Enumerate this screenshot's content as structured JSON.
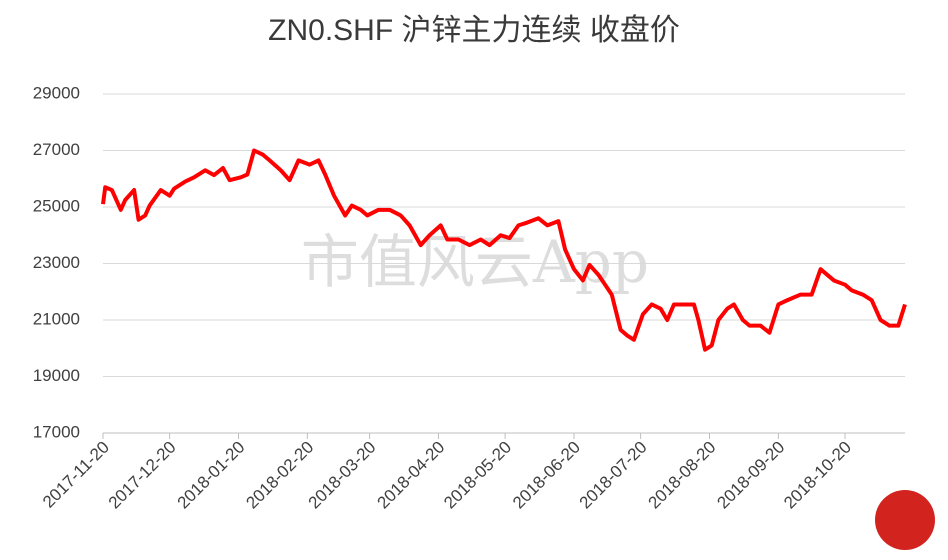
{
  "chart_data": {
    "type": "line",
    "title": "ZN0.SHF 沪锌主力连续 收盘价",
    "annotation": "市值风云App",
    "x": [
      "2017-11-20",
      "2017-11-21",
      "2017-11-24",
      "2017-11-28",
      "2017-11-30",
      "2017-12-04",
      "2017-12-06",
      "2017-12-09",
      "2017-12-11",
      "2017-12-16",
      "2017-12-20",
      "2017-12-22",
      "2017-12-27",
      "2017-12-31",
      "2018-01-05",
      "2018-01-09",
      "2018-01-13",
      "2018-01-16",
      "2018-01-21",
      "2018-01-24",
      "2018-01-27",
      "2018-01-31",
      "2018-02-03",
      "2018-02-08",
      "2018-02-12",
      "2018-02-16",
      "2018-02-21",
      "2018-02-25",
      "2018-02-28",
      "2018-03-04",
      "2018-03-09",
      "2018-03-12",
      "2018-03-16",
      "2018-03-19",
      "2018-03-24",
      "2018-03-29",
      "2018-04-03",
      "2018-04-07",
      "2018-04-12",
      "2018-04-16",
      "2018-04-21",
      "2018-04-24",
      "2018-04-29",
      "2018-05-04",
      "2018-05-09",
      "2018-05-13",
      "2018-05-18",
      "2018-05-22",
      "2018-05-26",
      "2018-05-30",
      "2018-06-04",
      "2018-06-08",
      "2018-06-13",
      "2018-06-16",
      "2018-06-20",
      "2018-06-24",
      "2018-06-27",
      "2018-07-01",
      "2018-07-04",
      "2018-07-07",
      "2018-07-11",
      "2018-07-14",
      "2018-07-17",
      "2018-07-21",
      "2018-07-25",
      "2018-07-29",
      "2018-08-01",
      "2018-08-04",
      "2018-08-09",
      "2018-08-13",
      "2018-08-15",
      "2018-08-18",
      "2018-08-21",
      "2018-08-24",
      "2018-08-28",
      "2018-08-31",
      "2018-09-04",
      "2018-09-07",
      "2018-09-12",
      "2018-09-16",
      "2018-09-20",
      "2018-09-24",
      "2018-09-30",
      "2018-10-05",
      "2018-10-09",
      "2018-10-12",
      "2018-10-15",
      "2018-10-20",
      "2018-10-23",
      "2018-10-28",
      "2018-11-01",
      "2018-11-05",
      "2018-11-09",
      "2018-11-13",
      "2018-11-16"
    ],
    "series": [
      {
        "name": "ZN0.SHF",
        "color": "#ff0000",
        "values": [
          25100,
          25700,
          25600,
          24900,
          25250,
          25600,
          24550,
          24700,
          25050,
          25600,
          25400,
          25650,
          25900,
          26050,
          26300,
          26130,
          26380,
          25950,
          26050,
          26150,
          27000,
          26850,
          26650,
          26300,
          25950,
          26650,
          26500,
          26650,
          26150,
          25400,
          24700,
          25050,
          24900,
          24700,
          24900,
          24900,
          24700,
          24350,
          23650,
          24000,
          24350,
          23850,
          23850,
          23650,
          23850,
          23650,
          24000,
          23900,
          24350,
          24450,
          24600,
          24350,
          24500,
          23500,
          22800,
          22400,
          22950,
          22600,
          22250,
          21900,
          20650,
          20450,
          20300,
          21200,
          21550,
          21400,
          21000,
          21550,
          21550,
          21550,
          21000,
          19950,
          20100,
          21000,
          21400,
          21550,
          21000,
          20800,
          20800,
          20550,
          21550,
          21700,
          21900,
          21900,
          22800,
          22600,
          22400,
          22250,
          22050,
          21900,
          21700,
          21000,
          20800,
          20800,
          21550
        ]
      }
    ],
    "xlim": [
      "2017-11-20",
      "2018-11-16"
    ],
    "xticks": [
      "2017-11-20",
      "2017-12-20",
      "2018-01-20",
      "2018-02-20",
      "2018-03-20",
      "2018-04-20",
      "2018-05-20",
      "2018-06-20",
      "2018-07-20",
      "2018-08-20",
      "2018-09-20",
      "2018-10-20"
    ],
    "ylim": [
      17000,
      29000
    ],
    "yticks": [
      17000,
      19000,
      21000,
      23000,
      25000,
      27000,
      29000
    ],
    "grid": true
  }
}
